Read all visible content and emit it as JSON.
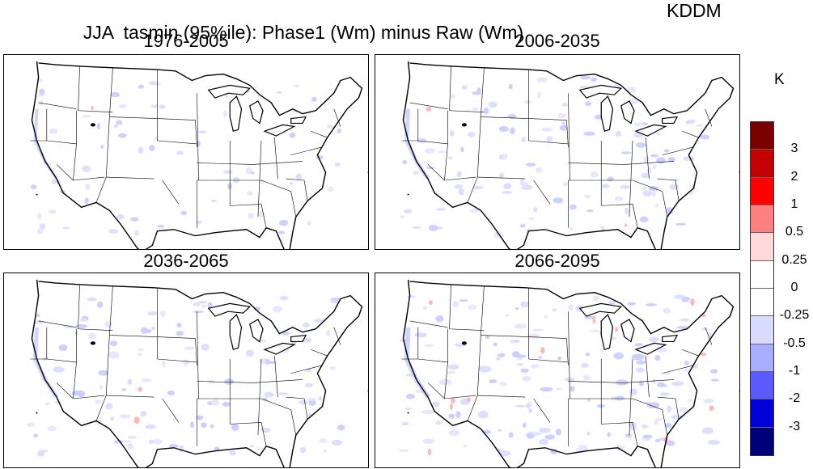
{
  "title": "JJA  tasmin (95%ile): Phase1 (Wm) minus Raw (Wm)",
  "model": "KDDM",
  "panels": [
    {
      "label": "1976-2005",
      "intensity": 1
    },
    {
      "label": "2006-2035",
      "intensity": 2
    },
    {
      "label": "2036-2065",
      "intensity": 2
    },
    {
      "label": "2066-2095",
      "intensity": 3
    }
  ],
  "colorbar": {
    "unit": "K",
    "colors": [
      "#7a0000",
      "#c40000",
      "#ff0000",
      "#ff8080",
      "#ffd9d9",
      "#ffffff",
      "#ffffff",
      "#d9dcff",
      "#a9adff",
      "#5a5aff",
      "#0000d8",
      "#00007a"
    ],
    "labels": [
      "3",
      "2",
      "1",
      "0.5",
      "0.25",
      "0",
      "-0.25",
      "-0.5",
      "-1",
      "-2",
      "-3"
    ]
  }
}
